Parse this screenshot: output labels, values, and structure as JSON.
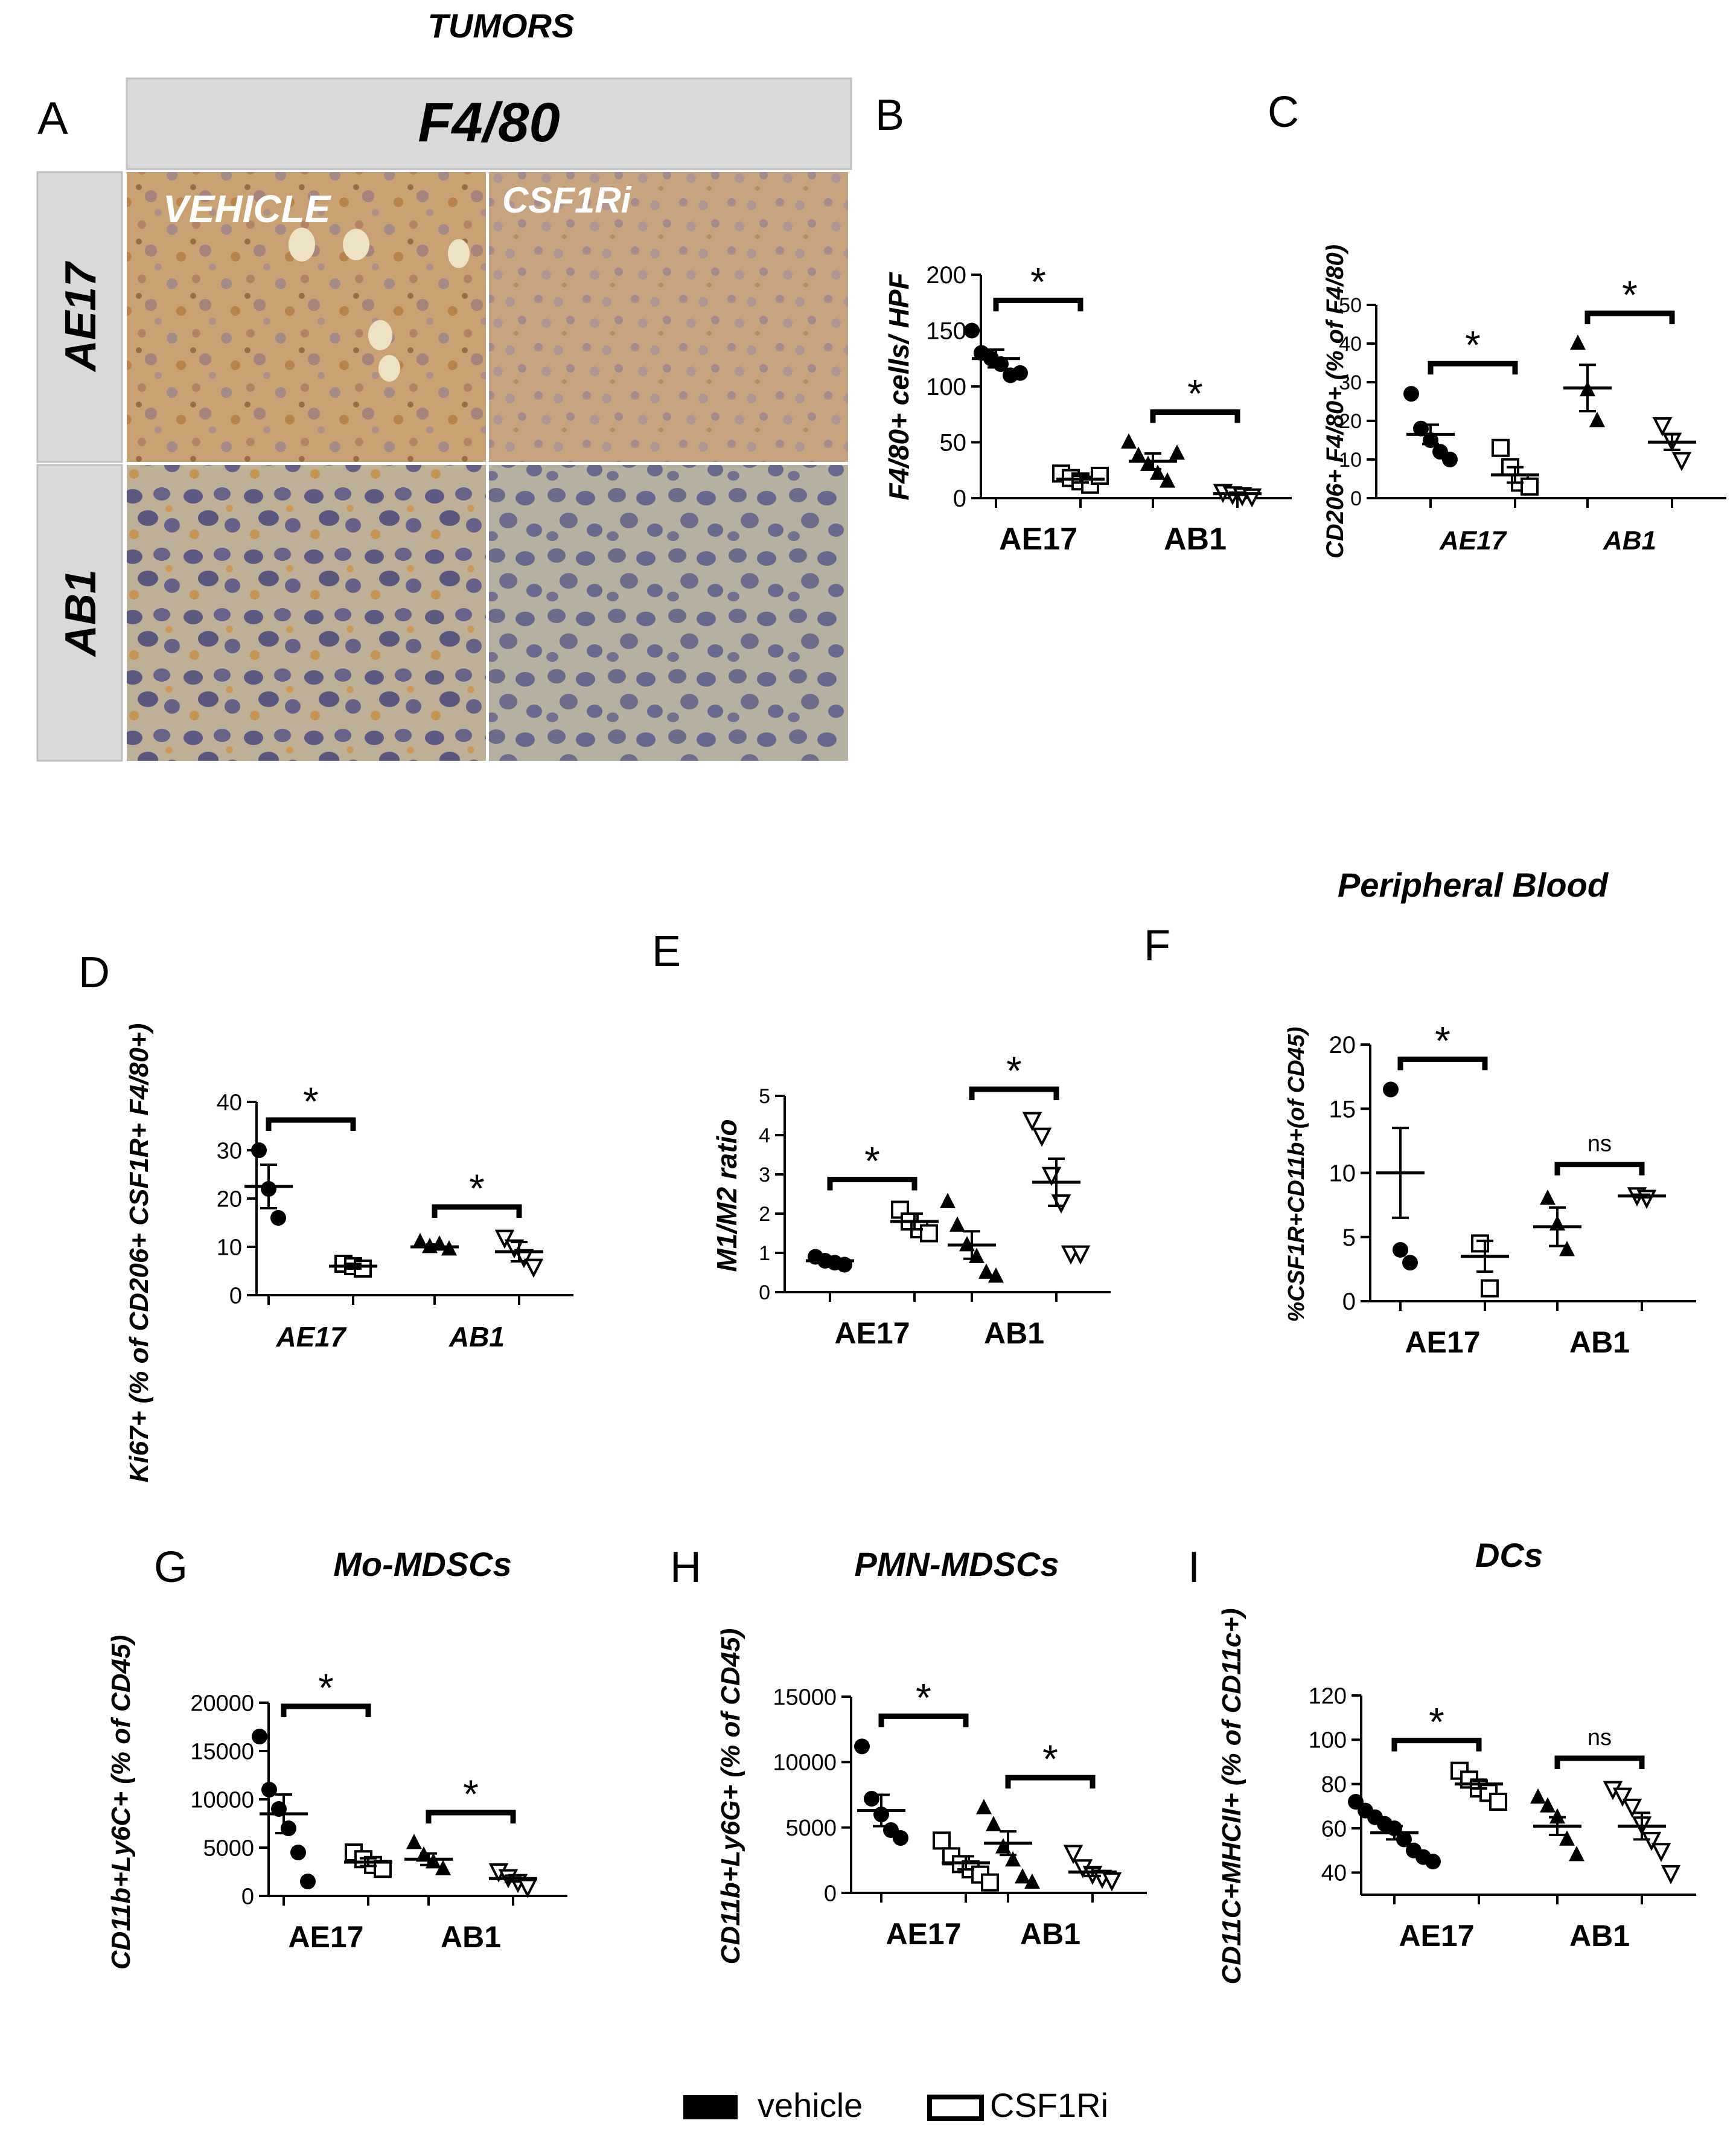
{
  "figure": {
    "top_title": "TUMORS",
    "panel_a": {
      "letter": "A",
      "header": "F4/80",
      "col_labels": [
        "VEHICLE",
        "CSF1Ri"
      ],
      "row_labels": [
        "AE17",
        "AB1"
      ]
    },
    "legend": {
      "vehicle": "vehicle",
      "csf1ri": "CSF1Ri"
    }
  },
  "colors": {
    "ink": "#000000",
    "gray_panel": "#d9d9d9",
    "ihc_brown": "#b88a55",
    "ihc_tan": "#c9a67a",
    "ihc_blue": "#5a5a8c",
    "ihc_light": "#b9a88f"
  },
  "chart_data": [
    {
      "panel": "B",
      "type": "scatter",
      "title": "",
      "ylabel": "F4/80+ cells/ HPF",
      "xlabel": "",
      "categories": [
        "AE17",
        "AB1"
      ],
      "ylim": [
        0,
        200
      ],
      "yticks": [
        0,
        50,
        100,
        150,
        200
      ],
      "tick_labels": [
        "0",
        "50",
        "100",
        "150",
        "200"
      ],
      "groups": [
        {
          "category": "AE17",
          "treatment": "vehicle",
          "marker": "circle",
          "mean": 125,
          "sem": 8,
          "points": [
            150,
            130,
            125,
            120,
            110,
            112
          ]
        },
        {
          "category": "AE17",
          "treatment": "CSF1Ri",
          "marker": "square",
          "mean": 17,
          "sem": 3,
          "points": [
            22,
            18,
            15,
            12,
            20
          ]
        },
        {
          "category": "AB1",
          "treatment": "vehicle",
          "marker": "triangle",
          "mean": 33,
          "sem": 7,
          "points": [
            50,
            38,
            30,
            22,
            15,
            40
          ]
        },
        {
          "category": "AB1",
          "treatment": "CSF1Ri",
          "marker": "triangle-down",
          "mean": 4,
          "sem": 1,
          "points": [
            6,
            4,
            3,
            2
          ]
        }
      ],
      "significance": [
        {
          "category": "AE17",
          "label": "*"
        },
        {
          "category": "AB1",
          "label": "*"
        }
      ]
    },
    {
      "panel": "C",
      "type": "scatter",
      "title": "",
      "ylabel": "CD206+ F4/80+ (% of F4/80)",
      "xlabel": "",
      "categories": [
        "AE17",
        "AB1"
      ],
      "ylim": [
        0,
        50
      ],
      "yticks": [
        0,
        10,
        20,
        30,
        40,
        50
      ],
      "tick_labels": [
        "0",
        "10",
        "20",
        "30",
        "40",
        "50"
      ],
      "groups": [
        {
          "category": "AE17",
          "treatment": "vehicle",
          "marker": "circle",
          "mean": 16.5,
          "sem": 2.5,
          "points": [
            27,
            18,
            15,
            12,
            10
          ]
        },
        {
          "category": "AE17",
          "treatment": "CSF1Ri",
          "marker": "square",
          "mean": 6,
          "sem": 2,
          "points": [
            13,
            8,
            4,
            3
          ]
        },
        {
          "category": "AB1",
          "treatment": "vehicle",
          "marker": "triangle",
          "mean": 28.5,
          "sem": 6,
          "points": [
            40,
            28,
            20
          ]
        },
        {
          "category": "AB1",
          "treatment": "CSF1Ri",
          "marker": "triangle-down",
          "mean": 14.5,
          "sem": 2,
          "points": [
            19,
            15,
            10
          ]
        }
      ],
      "significance": [
        {
          "category": "AE17",
          "label": "*"
        },
        {
          "category": "AB1",
          "label": "*"
        }
      ]
    },
    {
      "panel": "D",
      "type": "scatter",
      "title": "",
      "ylabel": "Ki67+ (% of  CD206+ CSF1R+ F4/80+)",
      "xlabel": "",
      "categories": [
        "AE17",
        "AB1"
      ],
      "ylim": [
        0,
        40
      ],
      "yticks": [
        0,
        10,
        20,
        30,
        40
      ],
      "tick_labels": [
        "0",
        "10",
        "20",
        "30",
        "40"
      ],
      "groups": [
        {
          "category": "AE17",
          "treatment": "vehicle",
          "marker": "circle",
          "mean": 22.5,
          "sem": 4.5,
          "points": [
            30,
            22,
            16
          ]
        },
        {
          "category": "AE17",
          "treatment": "CSF1Ri",
          "marker": "square",
          "mean": 6,
          "sem": 0.5,
          "points": [
            6.5,
            6,
            5.5
          ]
        },
        {
          "category": "AB1",
          "treatment": "vehicle",
          "marker": "triangle",
          "mean": 10,
          "sem": 0.5,
          "points": [
            11,
            10,
            10.5,
            9.5
          ]
        },
        {
          "category": "AB1",
          "treatment": "CSF1Ri",
          "marker": "triangle-down",
          "mean": 9,
          "sem": 2,
          "points": [
            12,
            10,
            8,
            6
          ]
        }
      ],
      "significance": [
        {
          "category": "AE17",
          "label": "*"
        },
        {
          "category": "AB1",
          "label": "*"
        }
      ]
    },
    {
      "panel": "E",
      "type": "scatter",
      "title": "",
      "ylabel": "M1/M2 ratio",
      "xlabel": "",
      "categories": [
        "AE17",
        "AB1"
      ],
      "ylim": [
        0,
        5
      ],
      "yticks": [
        0,
        1,
        2,
        3,
        4,
        5
      ],
      "tick_labels": [
        "0",
        "1",
        "2",
        "3",
        "4",
        "5"
      ],
      "groups": [
        {
          "category": "AE17",
          "treatment": "vehicle",
          "marker": "circle",
          "mean": 0.8,
          "sem": 0.05,
          "points": [
            0.9,
            0.8,
            0.75,
            0.7
          ]
        },
        {
          "category": "AE17",
          "treatment": "CSF1Ri",
          "marker": "square",
          "mean": 1.8,
          "sem": 0.2,
          "points": [
            2.1,
            1.8,
            1.6,
            1.5
          ]
        },
        {
          "category": "AB1",
          "treatment": "vehicle",
          "marker": "triangle",
          "mean": 1.2,
          "sem": 0.35,
          "points": [
            2.3,
            1.7,
            1.2,
            0.9,
            0.5,
            0.4
          ]
        },
        {
          "category": "AB1",
          "treatment": "CSF1Ri",
          "marker": "triangle-down",
          "mean": 2.8,
          "sem": 0.6,
          "points": [
            4.4,
            4.0,
            3.0,
            2.3,
            1.0,
            1.0
          ]
        }
      ],
      "significance": [
        {
          "category": "AE17",
          "label": "*"
        },
        {
          "category": "AB1",
          "label": "*"
        }
      ]
    },
    {
      "panel": "F",
      "type": "scatter",
      "title": "Peripheral Blood",
      "ylabel": "%CSF1R+CD11b+(of CD45)",
      "xlabel": "",
      "categories": [
        "AE17",
        "AB1"
      ],
      "ylim": [
        0,
        20
      ],
      "yticks": [
        0,
        5,
        10,
        15,
        20
      ],
      "tick_labels": [
        "0",
        "5",
        "10",
        "15",
        "20"
      ],
      "groups": [
        {
          "category": "AE17",
          "treatment": "vehicle",
          "marker": "circle",
          "mean": 10,
          "sem": 3.5,
          "points": [
            16.5,
            4,
            3
          ]
        },
        {
          "category": "AE17",
          "treatment": "CSF1Ri",
          "marker": "square",
          "mean": 3.5,
          "sem": 1.2,
          "points": [
            4.5,
            1
          ]
        },
        {
          "category": "AB1",
          "treatment": "vehicle",
          "marker": "triangle",
          "mean": 5.8,
          "sem": 1.5,
          "points": [
            8,
            6,
            4
          ]
        },
        {
          "category": "AB1",
          "treatment": "CSF1Ri",
          "marker": "triangle-down",
          "mean": 8.2,
          "sem": 0.1,
          "points": [
            8.3,
            8.1
          ]
        }
      ],
      "significance": [
        {
          "category": "AE17",
          "label": "*"
        },
        {
          "category": "AB1",
          "label": "ns"
        }
      ]
    },
    {
      "panel": "G",
      "type": "scatter",
      "title": "Mo-MDSCs",
      "ylabel": "CD11b+Ly6C+ (% of CD45)",
      "xlabel": "",
      "categories": [
        "AE17",
        "AB1"
      ],
      "ylim": [
        0,
        20000
      ],
      "yticks": [
        0,
        5000,
        10000,
        15000,
        20000
      ],
      "tick_labels": [
        "0",
        "5000",
        "10000",
        "15000",
        "20000"
      ],
      "groups": [
        {
          "category": "AE17",
          "treatment": "vehicle",
          "marker": "circle",
          "mean": 8500,
          "sem": 2000,
          "points": [
            16500,
            11000,
            9000,
            7000,
            4500,
            1500
          ]
        },
        {
          "category": "AE17",
          "treatment": "CSF1Ri",
          "marker": "square",
          "mean": 3500,
          "sem": 400,
          "points": [
            4500,
            3800,
            3200,
            2800
          ]
        },
        {
          "category": "AB1",
          "treatment": "vehicle",
          "marker": "triangle",
          "mean": 3800,
          "sem": 600,
          "points": [
            5500,
            4200,
            3500,
            2800
          ]
        },
        {
          "category": "AB1",
          "treatment": "CSF1Ri",
          "marker": "triangle-down",
          "mean": 1800,
          "sem": 300,
          "points": [
            2600,
            2000,
            1500,
            1000
          ]
        }
      ],
      "significance": [
        {
          "category": "AE17",
          "label": "*"
        },
        {
          "category": "AB1",
          "label": "*"
        }
      ]
    },
    {
      "panel": "H",
      "type": "scatter",
      "title": "PMN-MDSCs",
      "ylabel": "CD11b+Ly6G+ (% of CD45)",
      "xlabel": "",
      "categories": [
        "AE17",
        "AB1"
      ],
      "ylim": [
        0,
        15000
      ],
      "yticks": [
        0,
        5000,
        10000,
        15000
      ],
      "tick_labels": [
        "0",
        "5000",
        "10000",
        "15000"
      ],
      "groups": [
        {
          "category": "AE17",
          "treatment": "vehicle",
          "marker": "circle",
          "mean": 6300,
          "sem": 1200,
          "points": [
            11200,
            7200,
            6000,
            4800,
            4200
          ]
        },
        {
          "category": "AE17",
          "treatment": "CSF1Ri",
          "marker": "square",
          "mean": 2300,
          "sem": 500,
          "points": [
            4000,
            2800,
            2200,
            1800,
            1400,
            800
          ]
        },
        {
          "category": "AB1",
          "treatment": "vehicle",
          "marker": "triangle",
          "mean": 3800,
          "sem": 900,
          "points": [
            6500,
            5200,
            3500,
            2500,
            1200,
            800
          ]
        },
        {
          "category": "AB1",
          "treatment": "CSF1Ri",
          "marker": "triangle-down",
          "mean": 1600,
          "sem": 300,
          "points": [
            3100,
            2000,
            1500,
            1200,
            1000
          ]
        }
      ],
      "significance": [
        {
          "category": "AE17",
          "label": "*"
        },
        {
          "category": "AB1",
          "label": "*"
        }
      ]
    },
    {
      "panel": "I",
      "type": "scatter",
      "title": "DCs",
      "ylabel": "CD11C+MHCII+ (% of CD11c+)",
      "xlabel": "",
      "categories": [
        "AE17",
        "AB1"
      ],
      "ylim": [
        30,
        120
      ],
      "yticks": [
        40,
        60,
        80,
        100,
        120
      ],
      "tick_labels": [
        "40",
        "60",
        "80",
        "100",
        "120"
      ],
      "groups": [
        {
          "category": "AE17",
          "treatment": "vehicle",
          "marker": "circle",
          "mean": 58,
          "sem": 3,
          "points": [
            72,
            68,
            65,
            62,
            60,
            55,
            50,
            47,
            45
          ]
        },
        {
          "category": "AE17",
          "treatment": "CSF1Ri",
          "marker": "square",
          "mean": 80,
          "sem": 2,
          "points": [
            86,
            82,
            78,
            76,
            72
          ]
        },
        {
          "category": "AB1",
          "treatment": "vehicle",
          "marker": "triangle",
          "mean": 61,
          "sem": 4,
          "points": [
            74,
            70,
            65,
            55,
            48
          ]
        },
        {
          "category": "AB1",
          "treatment": "CSF1Ri",
          "marker": "triangle-down",
          "mean": 61,
          "sem": 6,
          "points": [
            78,
            75,
            70,
            62,
            55,
            50,
            40
          ]
        }
      ],
      "significance": [
        {
          "category": "AE17",
          "label": "*"
        },
        {
          "category": "AB1",
          "label": "ns"
        }
      ]
    }
  ]
}
